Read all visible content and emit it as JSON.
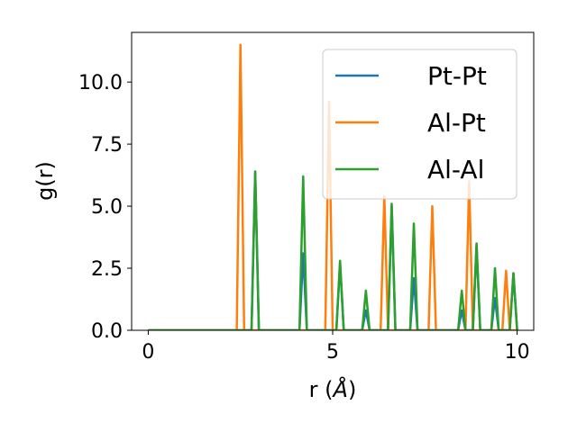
{
  "chart_data": {
    "type": "line",
    "title": "",
    "xlabel_prefix": "r (",
    "xlabel_unit": "Å",
    "xlabel_suffix": ")",
    "ylabel": "g(r)",
    "xlim": [
      -0.45,
      10.45
    ],
    "ylim": [
      0,
      12
    ],
    "x_ticks": [
      0,
      5,
      10
    ],
    "x_tick_labels": [
      "0",
      "5",
      "10"
    ],
    "y_ticks": [
      0,
      2.5,
      5,
      7.5,
      10
    ],
    "y_tick_labels": [
      "0.0",
      "2.5",
      "5.0",
      "7.5",
      "10.0"
    ],
    "grid": false,
    "legend_position": "top-right",
    "series": [
      {
        "name": "Pt-Pt",
        "color": "#1f77b4",
        "x": [
          0,
          2.8,
          2.9,
          3.0,
          4.1,
          4.2,
          4.3,
          5.1,
          5.2,
          5.3,
          5.8,
          5.9,
          6.0,
          6.5,
          6.6,
          6.7,
          7.1,
          7.2,
          7.3,
          8.4,
          8.5,
          8.6,
          8.8,
          8.9,
          9.0,
          9.3,
          9.4,
          9.5,
          9.8,
          9.9,
          10.0
        ],
        "y": [
          0,
          0,
          6.4,
          0,
          0,
          3.1,
          0,
          0,
          2.7,
          0,
          0,
          0.8,
          0,
          0,
          5.0,
          0,
          0,
          2.1,
          0,
          0,
          0.8,
          0,
          0,
          3.4,
          0,
          0,
          1.3,
          0,
          0,
          2.3,
          0
        ]
      },
      {
        "name": "Al-Pt",
        "color": "#ff7f0e",
        "x": [
          0,
          2.4,
          2.5,
          2.6,
          4.8,
          4.9,
          5.0,
          6.3,
          6.4,
          6.5,
          7.6,
          7.7,
          7.8,
          8.6,
          8.7,
          8.8,
          9.6,
          9.7,
          9.8,
          10.0
        ],
        "y": [
          0,
          0,
          11.5,
          0,
          0,
          9.2,
          0,
          0,
          5.4,
          0,
          0,
          5.0,
          0,
          0,
          6.0,
          0,
          0,
          2.4,
          0,
          0
        ]
      },
      {
        "name": "Al-Al",
        "color": "#2ca02c",
        "x": [
          0,
          2.8,
          2.9,
          3.0,
          4.1,
          4.2,
          4.3,
          5.1,
          5.2,
          5.3,
          5.8,
          5.9,
          6.0,
          6.5,
          6.6,
          6.7,
          7.1,
          7.2,
          7.3,
          8.4,
          8.5,
          8.6,
          8.8,
          8.9,
          9.0,
          9.3,
          9.4,
          9.5,
          9.8,
          9.9,
          10.0
        ],
        "y": [
          0,
          0,
          6.4,
          0,
          0,
          6.2,
          0,
          0,
          2.8,
          0,
          0,
          1.6,
          0,
          0,
          5.1,
          0,
          0,
          4.3,
          0,
          0,
          1.6,
          0,
          0,
          3.5,
          0,
          0,
          2.5,
          0,
          0,
          2.3,
          0
        ]
      }
    ]
  }
}
